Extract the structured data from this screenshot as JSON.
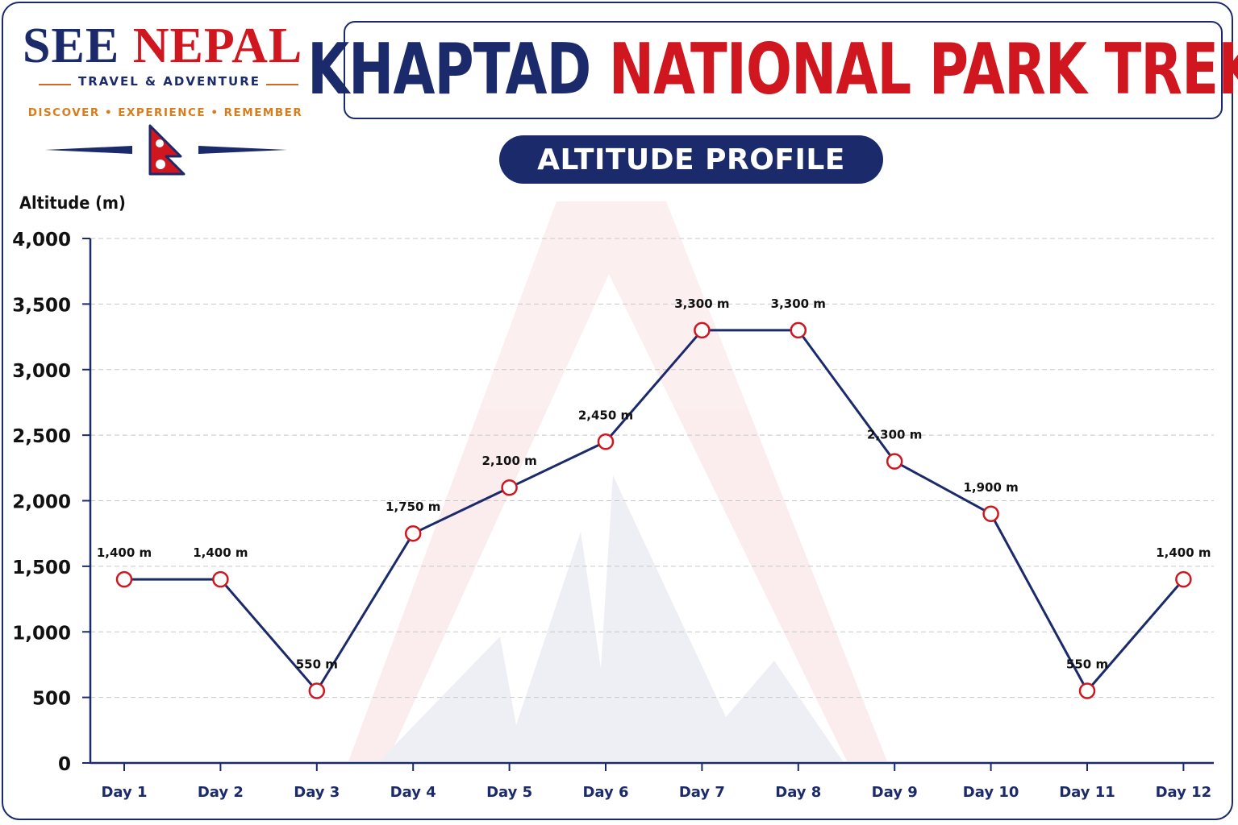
{
  "brand": {
    "name_part1": "SEE",
    "name_part2": "NEPAL",
    "tagline": "TRAVEL & ADVENTURE",
    "slogan": "DISCOVER • EXPERIENCE • REMEMBER",
    "colors": {
      "navy": "#1b2a6b",
      "red": "#d0161e",
      "orange": "#d67d1c"
    }
  },
  "header": {
    "title_part1": "KHAPTAD",
    "title_part2": "NATIONAL PARK TREK",
    "subtitle": "ALTITUDE PROFILE"
  },
  "chart_data": {
    "type": "line",
    "title": "KHAPTAD NATIONAL PARK TREK",
    "subtitle": "ALTITUDE PROFILE",
    "xlabel": "",
    "ylabel": "Altitude (m)",
    "categories": [
      "Day 1",
      "Day 2",
      "Day 3",
      "Day 4",
      "Day 5",
      "Day 6",
      "Day 7",
      "Day 8",
      "Day 9",
      "Day 10",
      "Day 11",
      "Day 12"
    ],
    "values": [
      1400,
      1400,
      550,
      1750,
      2100,
      2450,
      3300,
      3300,
      2300,
      1900,
      550,
      1400
    ],
    "data_labels": [
      "1,400 m",
      "1,400 m",
      "550 m",
      "1,750 m",
      "2,100 m",
      "2,450 m",
      "3,300 m",
      "3,300 m",
      "2,300 m",
      "1,900 m",
      "550 m",
      "1,400 m"
    ],
    "ylim": [
      0,
      4000
    ],
    "yticks": [
      0,
      500,
      1000,
      1500,
      2000,
      2500,
      3000,
      3500,
      4000
    ],
    "ytick_labels": [
      "0",
      "500",
      "1,000",
      "1,500",
      "2,000",
      "2,500",
      "3,000",
      "3,500",
      "4,000"
    ],
    "grid": true,
    "line_color": "#1b2a6b",
    "marker_color": "#d0161e"
  }
}
